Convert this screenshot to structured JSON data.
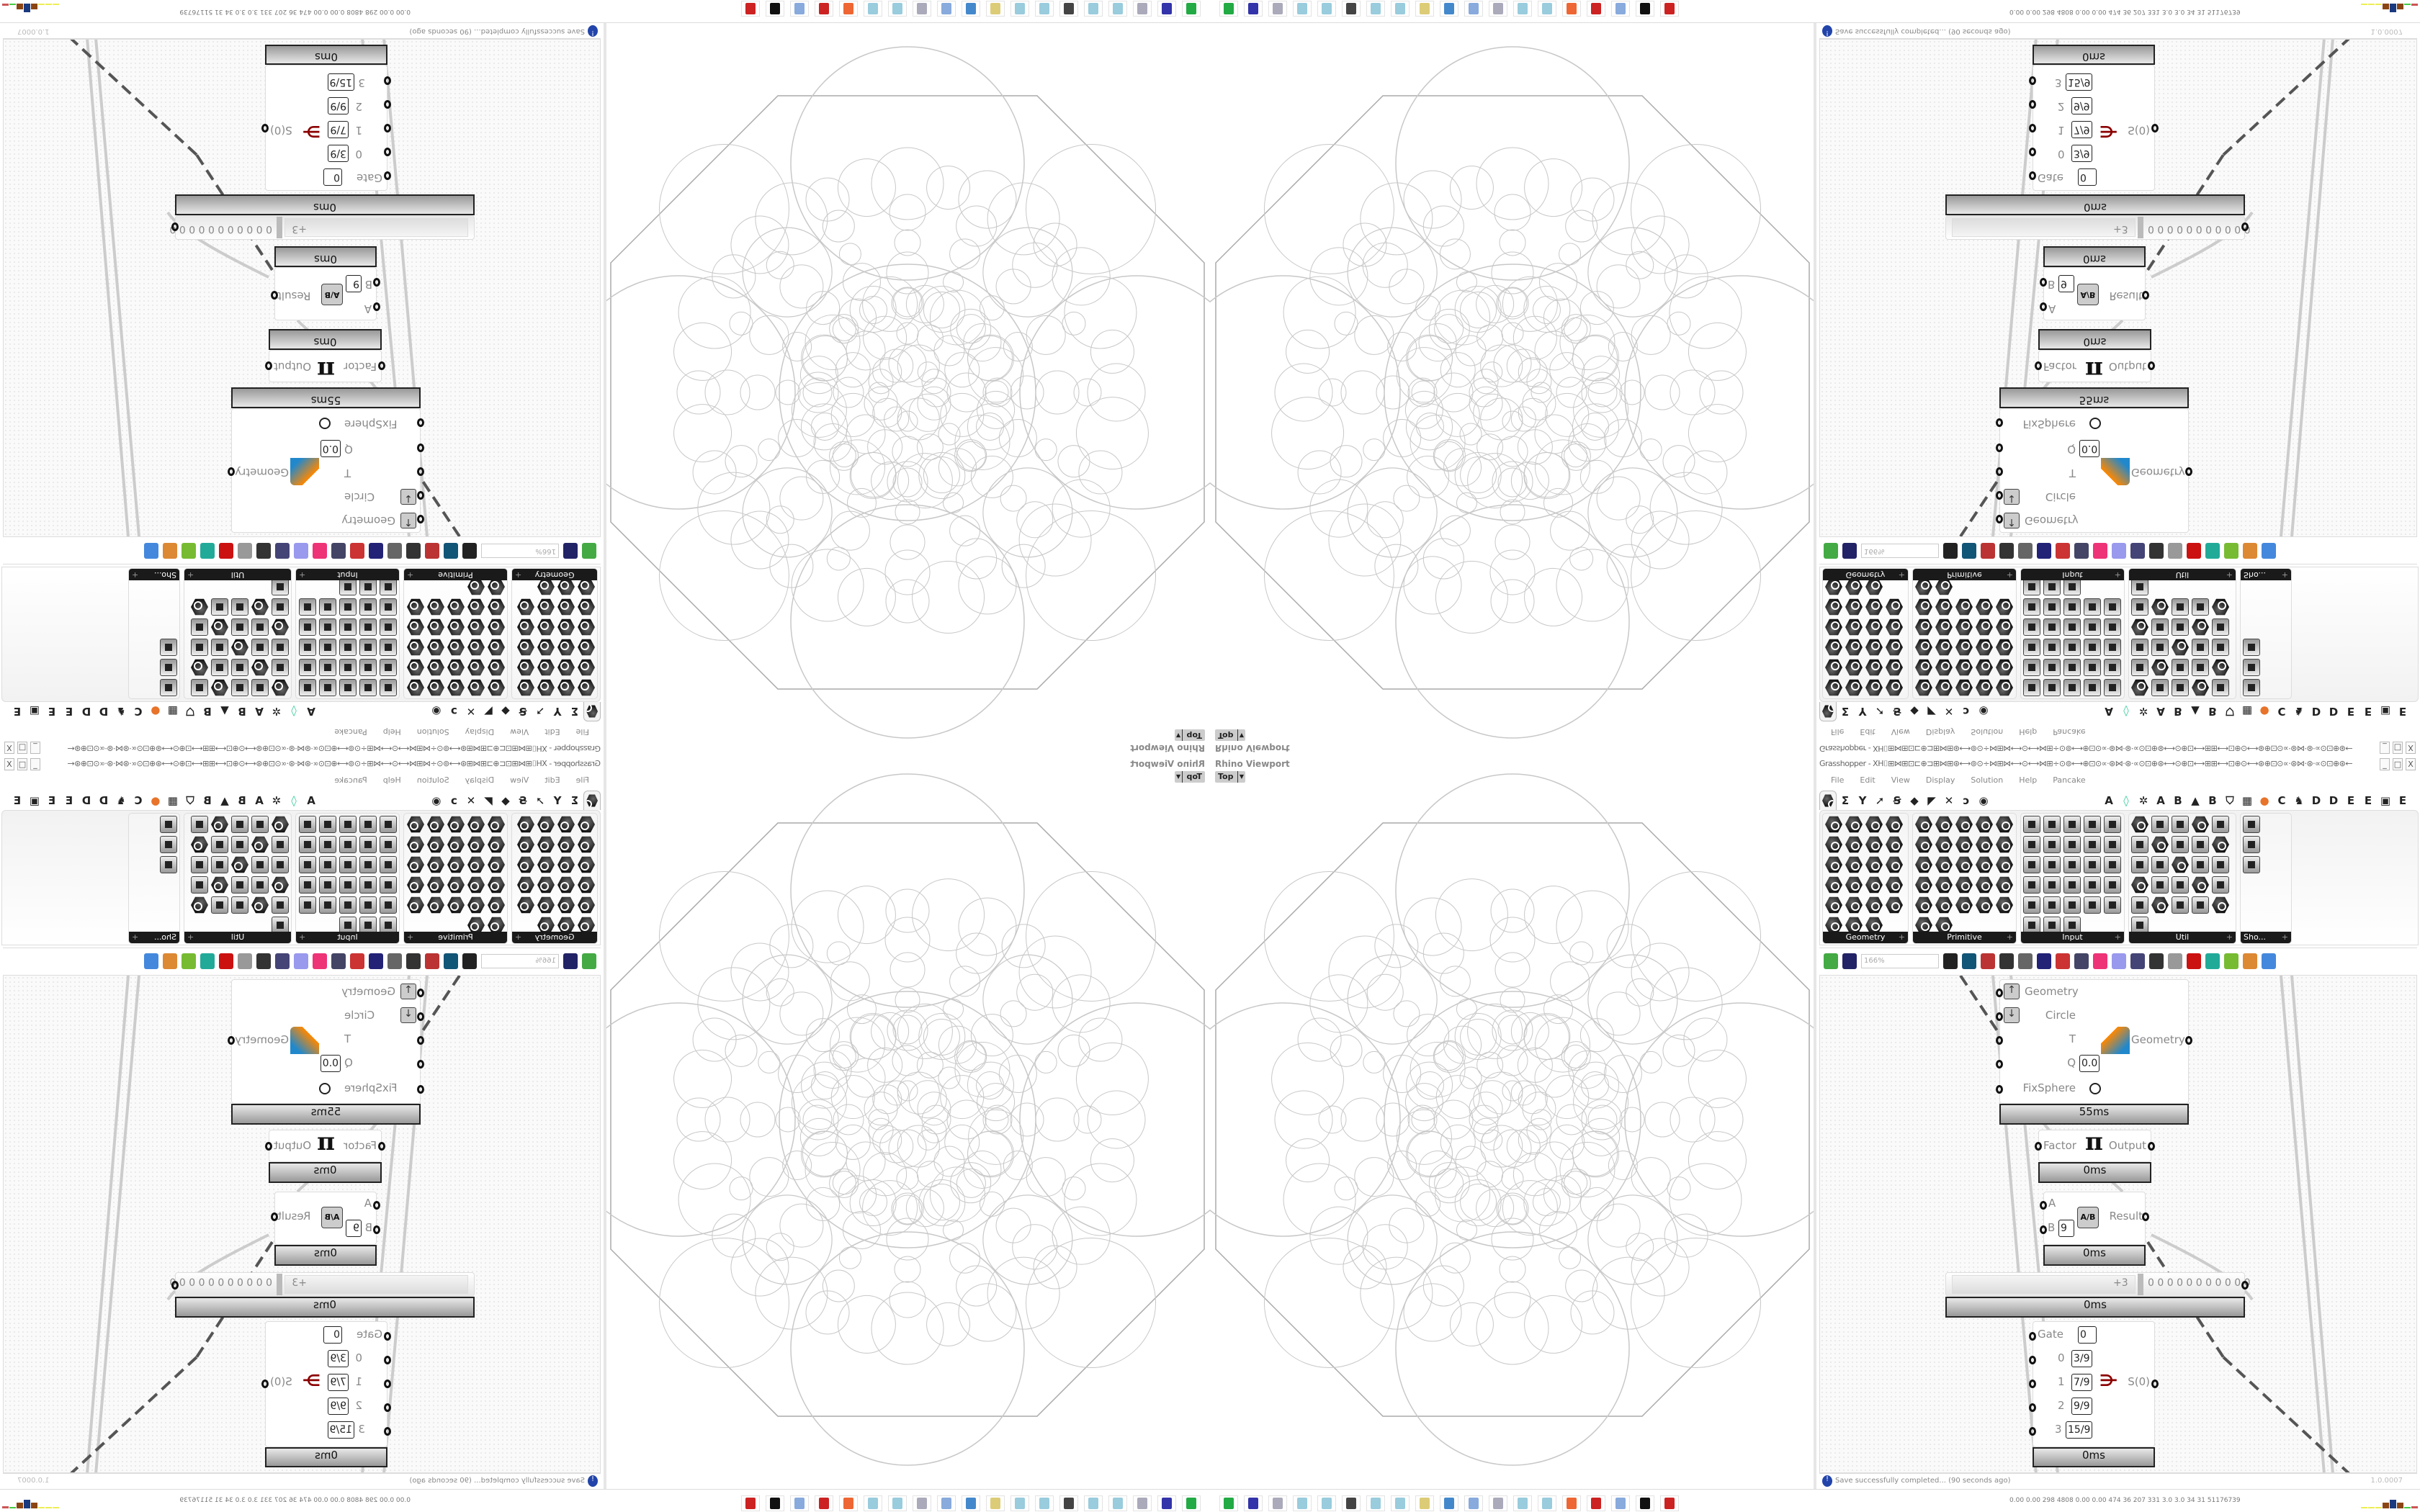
{
  "rhino": {
    "label": "Rhino Viewport",
    "view": "Top"
  },
  "gh": {
    "title": "Grasshopper - XH⌷⊞⋈⊞⊡⊏⊕⊐⊞⋈⊞⊛⟷⊚⊙÷⋈⊞⋈⟷⊙⟷⋈⊞÷⊙⊚⟷⊕⊡⊙∝·⊛⋈·⊛·∝⊙⊡⊕⊛⟷⊙⊕⊡⟷⊞⊞⟷⊡⊕⊙⟷⊛⊕⊡⊙∝·⊛⋈·⊛·∝⊙⊡⊕⊛⟷⊚⊙÷⋈⊞⋈⟷⊙...",
    "window_buttons": [
      "_",
      "□",
      "X"
    ],
    "menu": [
      "File",
      "Edit",
      "View",
      "Display",
      "Solution",
      "Help",
      "Pancake"
    ],
    "tabs": [
      {
        "icon": "params-hexagon-icon",
        "selected": true
      },
      {
        "label": "Σ",
        "icon": "maths-icon"
      },
      {
        "label": "Y",
        "icon": "sets-icon"
      },
      {
        "label": "➚",
        "icon": "vector-icon"
      },
      {
        "label": "Ꞩ",
        "icon": "curve-icon"
      },
      {
        "label": "◆",
        "icon": "surface-icon"
      },
      {
        "label": "◤",
        "icon": "mesh-icon"
      },
      {
        "label": "✕",
        "icon": "intersect-icon"
      },
      {
        "label": "ↄ",
        "icon": "transform-icon"
      },
      {
        "label": "◉",
        "icon": "display-icon"
      },
      {
        "label": "A"
      },
      {
        "label": "◊",
        "icon": "crystal-icon",
        "color": "#3c9"
      },
      {
        "label": "✲",
        "icon": "brain-icon"
      },
      {
        "label": "A"
      },
      {
        "label": "B"
      },
      {
        "label": "▲",
        "icon": "mountain-icon"
      },
      {
        "label": "B"
      },
      {
        "label": "⛉",
        "icon": "shield-icon"
      },
      {
        "label": "▦",
        "icon": "grid-icon"
      },
      {
        "label": "●",
        "icon": "orange-circle-icon",
        "color": "#e8732a"
      },
      {
        "label": "C"
      },
      {
        "label": "♞",
        "icon": "chicken-icon"
      },
      {
        "label": "D"
      },
      {
        "label": "D"
      },
      {
        "label": "E"
      },
      {
        "label": "E"
      },
      {
        "label": "▣",
        "icon": "dotted-square-icon"
      },
      {
        "label": "E"
      }
    ],
    "palette": [
      {
        "name": "Geometry",
        "shape": "hex",
        "cols": 4,
        "count": 23
      },
      {
        "name": "Primitive",
        "shape": "hex",
        "cols": 5,
        "count": 27
      },
      {
        "name": "Input",
        "shape": "sq",
        "cols": 5,
        "count": 28
      },
      {
        "name": "Util",
        "shape": "mix",
        "cols": 5,
        "count": 26
      },
      {
        "name": "Sho...",
        "shape": "sq",
        "cols": 1,
        "count": 3
      }
    ],
    "toolbar": {
      "zoom": "166%",
      "icons": [
        "new-document-icon",
        "save-icon",
        "zoom-extents-icon",
        "preview-eye-icon",
        "sketch-icon",
        "cluster-icon",
        "hash-icon",
        "gha-icon",
        "canvas-image-icon",
        "search-icon",
        "package-icon",
        "bulb-icon",
        "wires-icon",
        "preview-off-icon",
        "preview-wire-icon",
        "preview-shaded-icon",
        "preview-selected-icon",
        "preview-custom-icon",
        "preview-color-icon",
        "sphere-icon"
      ],
      "icon_colors": [
        "#4a4",
        "#226",
        "#222",
        "#157",
        "#b33",
        "#333",
        "#666",
        "#227",
        "#c33",
        "#446",
        "#e37",
        "#99e",
        "#447",
        "#333",
        "#999",
        "#c11",
        "#2a9",
        "#7b3",
        "#d83",
        "#48d"
      ]
    },
    "components": {
      "main": {
        "inputs": [
          "Geometry",
          "Circle",
          "T",
          "Q",
          "FixSphere"
        ],
        "q_value": "0.0",
        "output": "Geometry",
        "time": "55ms"
      },
      "pi": {
        "input": "Factor",
        "output": "Output",
        "symbol": "π",
        "time": "0ms"
      },
      "division": {
        "inputs": [
          "A",
          "B"
        ],
        "b_value": "9",
        "output": "Result",
        "symbol": "A/B",
        "time": "0ms"
      },
      "slider": {
        "value": "+3",
        "digits": "0 0 0 0 0 0 0 0 0 0 0",
        "time": "0ms"
      },
      "stream": {
        "inputs": [
          "Gate",
          "0",
          "1",
          "2",
          "3"
        ],
        "values": [
          "0",
          "3/9",
          "7/9",
          "9/9",
          "15/9"
        ],
        "output": "S(0)",
        "time": "0ms"
      }
    },
    "status": {
      "message": "Save successfully completed... (90 seconds ago)",
      "version": "1.0.0007"
    }
  },
  "taskbar": {
    "icons": [
      "green-device-icon",
      "floppy-64-icon",
      "notepad-scroll-icon",
      "notepad-icon",
      "notepad-icon",
      "monitor-graph-icon",
      "notepad-icon",
      "notepad-icon",
      "folder-icon",
      "control-panel-icon",
      "calculator-icon",
      "notepad-scroll-icon",
      "notepad-icon",
      "notepad-icon",
      "firefox-icon",
      "red-bug-icon",
      "calculator-icon",
      "rhino-icon",
      "red-bug-icon"
    ],
    "icon_colors": [
      "#2a4",
      "#33a",
      "#aab",
      "#9cd",
      "#9cd",
      "#444",
      "#9cd",
      "#9cd",
      "#dc7",
      "#48c",
      "#8ad",
      "#aab",
      "#9cd",
      "#9cd",
      "#e63",
      "#c22",
      "#8ad",
      "#111",
      "#c22"
    ],
    "stats": "0.00 0.00 298 4808 0.00 0.00 474 36 207 331 3.0 3.0 34 31 51176739",
    "meter_colors": [
      "#ee5",
      "#ee5",
      "#ee5",
      "#8b4513",
      "#1a3a80",
      "#8b4513",
      "#4c4",
      "#c55"
    ]
  }
}
